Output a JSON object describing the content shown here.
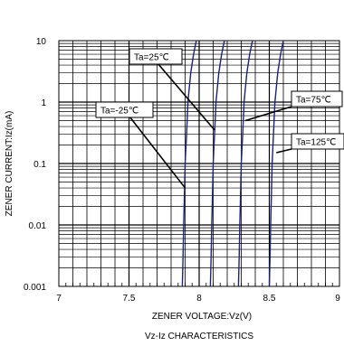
{
  "chart_data": {
    "type": "line",
    "title": "",
    "caption": "Vz-Iz CHARACTERISTICS",
    "xlabel": "ZENER VOLTAGE:Vz(V)",
    "ylabel": "ZENER CURRENT:Iz(mA)",
    "xlim": [
      7,
      9
    ],
    "ylim": [
      0.001,
      10
    ],
    "yscale": "log",
    "grid": true,
    "x_ticks": [
      "7",
      "7.5",
      "8",
      "8.5",
      "9"
    ],
    "y_ticks": [
      "10",
      "1",
      "0.1",
      "0.01",
      "0.001"
    ],
    "series": [
      {
        "name": "Ta=-25℃",
        "color": "#1a237e",
        "x": [
          7.88,
          7.885,
          7.89,
          7.895,
          7.9,
          7.91,
          7.92,
          7.94,
          7.96,
          7.98
        ],
        "y": [
          0.001,
          0.003,
          0.01,
          0.03,
          0.1,
          0.3,
          1,
          3,
          6,
          10
        ]
      },
      {
        "name": "Ta=25℃",
        "color": "#1a237e",
        "x": [
          8.08,
          8.085,
          8.09,
          8.095,
          8.1,
          8.11,
          8.12,
          8.14,
          8.16,
          8.18
        ],
        "y": [
          0.001,
          0.003,
          0.01,
          0.03,
          0.1,
          0.3,
          1,
          3,
          6,
          10
        ]
      },
      {
        "name": "Ta=75℃",
        "color": "#1a237e",
        "x": [
          8.28,
          8.285,
          8.29,
          8.295,
          8.3,
          8.31,
          8.32,
          8.34,
          8.36,
          8.38
        ],
        "y": [
          0.001,
          0.003,
          0.01,
          0.03,
          0.1,
          0.3,
          1,
          3,
          6,
          10
        ]
      },
      {
        "name": "Ta=125℃",
        "color": "#1a237e",
        "x": [
          8.5,
          8.505,
          8.51,
          8.515,
          8.52,
          8.53,
          8.54,
          8.56,
          8.58,
          8.6
        ],
        "y": [
          0.001,
          0.003,
          0.01,
          0.03,
          0.1,
          0.3,
          1,
          3,
          6,
          10
        ]
      }
    ],
    "annotations": [
      {
        "text": "Ta=25℃",
        "series": "Ta=25℃"
      },
      {
        "text": "Ta=-25℃",
        "series": "Ta=-25℃"
      },
      {
        "text": "Ta=75℃",
        "series": "Ta=75℃"
      },
      {
        "text": "Ta=125℃",
        "series": "Ta=125℃"
      }
    ]
  }
}
